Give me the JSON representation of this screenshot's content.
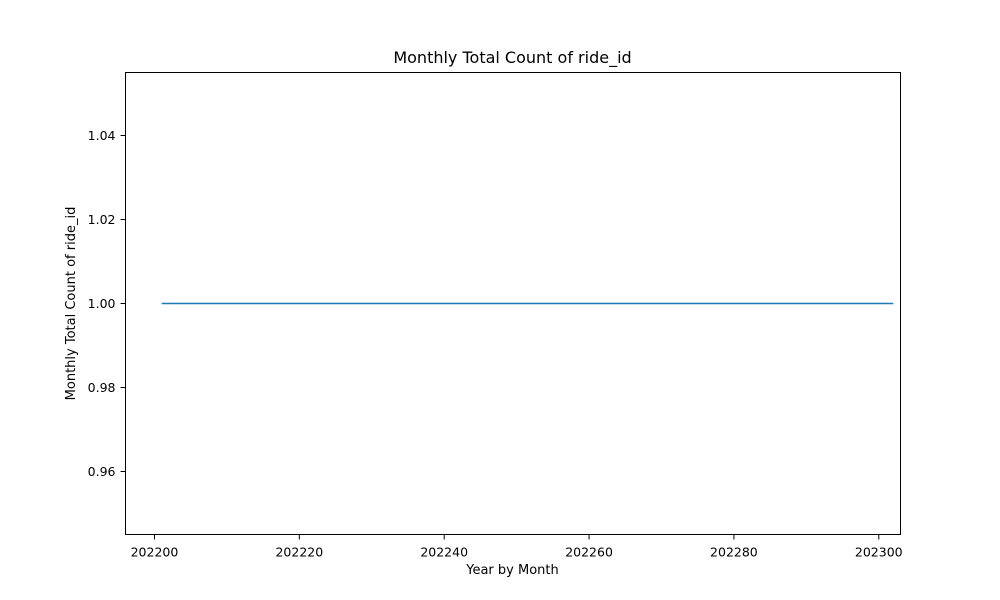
{
  "chart_data": {
    "type": "line",
    "title": "Monthly Total Count of ride_id",
    "xlabel": "Year by Month",
    "ylabel": "Monthly Total Count of ride_id",
    "xlim": [
      202196,
      202303
    ],
    "ylim": [
      0.945,
      1.055
    ],
    "xticks": [
      202200,
      202220,
      202240,
      202260,
      202280,
      202300
    ],
    "xtick_labels": [
      "202200",
      "202220",
      "202240",
      "202260",
      "202280",
      "202300"
    ],
    "yticks": [
      0.96,
      0.98,
      1.0,
      1.02,
      1.04
    ],
    "ytick_labels": [
      "0.96",
      "0.98",
      "1.00",
      "1.02",
      "1.04"
    ],
    "grid": false,
    "series": [
      {
        "color": "#1f77b4",
        "x": [
          202201,
          202202,
          202203,
          202204,
          202205,
          202206,
          202207,
          202208,
          202209,
          202210,
          202211,
          202212,
          202301,
          202302
        ],
        "y": [
          1,
          1,
          1,
          1,
          1,
          1,
          1,
          1,
          1,
          1,
          1,
          1,
          1,
          1
        ]
      }
    ]
  }
}
